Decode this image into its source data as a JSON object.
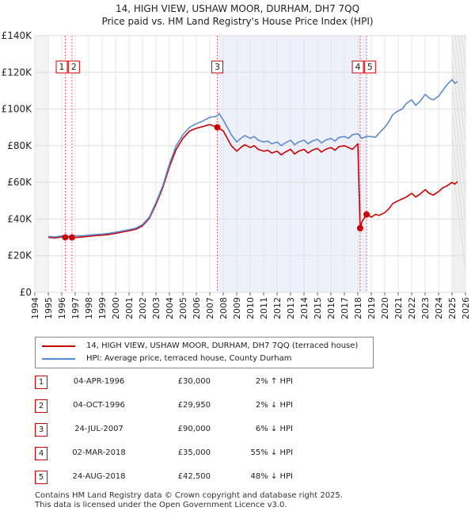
{
  "title": "14, HIGH VIEW, USHAW MOOR, DURHAM, DH7 7QQ",
  "subtitle": "Price paid vs. HM Land Registry's House Price Index (HPI)",
  "legend": [
    {
      "label": "14, HIGH VIEW, USHAW MOOR, DURHAM, DH7 7QQ (terraced house)",
      "color": "#cc0000"
    },
    {
      "label": "HPI: Average price, terraced house, County Durham",
      "color": "#5b8bd0"
    }
  ],
  "sales": [
    {
      "num": "1",
      "date": "04-APR-1996",
      "price": "£30,000",
      "hpi": "2% ↑ HPI"
    },
    {
      "num": "2",
      "date": "04-OCT-1996",
      "price": "£29,950",
      "hpi": "2% ↓ HPI"
    },
    {
      "num": "3",
      "date": "24-JUL-2007",
      "price": "£90,000",
      "hpi": "6% ↓ HPI"
    },
    {
      "num": "4",
      "date": "02-MAR-2018",
      "price": "£35,000",
      "hpi": "55% ↓ HPI"
    },
    {
      "num": "5",
      "date": "24-AUG-2018",
      "price": "£42,500",
      "hpi": "48% ↓ HPI"
    }
  ],
  "footer": {
    "line1": "Contains HM Land Registry data © Crown copyright and database right 2025.",
    "line2": "This data is licensed under the Open Government Licence v3.0."
  },
  "chart_data": {
    "type": "line",
    "title": "14, HIGH VIEW, USHAW MOOR, DURHAM, DH7 7QQ",
    "subtitle": "Price paid vs. HM Land Registry's House Price Index (HPI)",
    "xlabel": "",
    "ylabel": "",
    "xlim": [
      1994,
      2026
    ],
    "ylim": [
      0,
      140000
    ],
    "x_ticks": [
      1994,
      1995,
      1996,
      1997,
      1998,
      1999,
      2000,
      2001,
      2002,
      2003,
      2004,
      2005,
      2006,
      2007,
      2008,
      2009,
      2010,
      2011,
      2012,
      2013,
      2014,
      2015,
      2016,
      2017,
      2018,
      2019,
      2020,
      2021,
      2022,
      2023,
      2024,
      2025,
      2026
    ],
    "y_ticks": [
      0,
      20000,
      40000,
      60000,
      80000,
      100000,
      120000,
      140000
    ],
    "y_tick_labels": [
      "£0",
      "£20K",
      "£40K",
      "£60K",
      "£80K",
      "£100K",
      "£120K",
      "£140K"
    ],
    "grid": true,
    "legend_position": "below",
    "data_range_start": 1995,
    "forecast_start": 2025.0,
    "highlight_span": [
      2007.56,
      2018.65
    ],
    "series": [
      {
        "name": "HPI: Average price, terraced house, County Durham",
        "color": "#5b8bd0",
        "x": [
          1995.0,
          1995.5,
          1996.0,
          1996.5,
          1997.0,
          1997.5,
          1998.0,
          1998.5,
          1999.0,
          1999.5,
          2000.0,
          2000.5,
          2001.0,
          2001.5,
          2002.0,
          2002.5,
          2003.0,
          2003.5,
          2004.0,
          2004.5,
          2005.0,
          2005.5,
          2006.0,
          2006.5,
          2007.0,
          2007.5,
          2007.7,
          2008.0,
          2008.3,
          2008.6,
          2009.0,
          2009.3,
          2009.6,
          2010.0,
          2010.3,
          2010.6,
          2011.0,
          2011.3,
          2011.6,
          2012.0,
          2012.3,
          2012.6,
          2013.0,
          2013.3,
          2013.6,
          2014.0,
          2014.3,
          2014.6,
          2015.0,
          2015.3,
          2015.6,
          2016.0,
          2016.3,
          2016.6,
          2017.0,
          2017.3,
          2017.6,
          2018.0,
          2018.3,
          2018.6,
          2019.0,
          2019.3,
          2019.6,
          2020.0,
          2020.3,
          2020.6,
          2021.0,
          2021.3,
          2021.6,
          2022.0,
          2022.3,
          2022.6,
          2023.0,
          2023.3,
          2023.6,
          2024.0,
          2024.3,
          2024.6,
          2025.0,
          2025.2,
          2025.4
        ],
        "y": [
          30500,
          30200,
          30800,
          30600,
          30900,
          30800,
          31200,
          31500,
          31800,
          32200,
          32800,
          33500,
          34200,
          35000,
          37000,
          41000,
          49000,
          58000,
          70000,
          80000,
          86000,
          90000,
          92000,
          93500,
          95500,
          96000,
          97500,
          94000,
          90000,
          86000,
          82000,
          84000,
          85500,
          84000,
          85000,
          83000,
          82000,
          82500,
          81000,
          82000,
          80000,
          81500,
          83000,
          80500,
          82000,
          83000,
          81000,
          82500,
          83500,
          81500,
          83000,
          84000,
          82500,
          84500,
          85000,
          84000,
          86000,
          86500,
          84000,
          85000,
          85000,
          84500,
          87000,
          90000,
          93000,
          97000,
          99000,
          100000,
          103000,
          105000,
          102000,
          104000,
          108000,
          106000,
          105000,
          107000,
          110000,
          113000,
          116000,
          114000,
          115000
        ]
      },
      {
        "name": "14, HIGH VIEW, USHAW MOOR, DURHAM, DH7 7QQ (terraced house)",
        "color": "#cc0000",
        "x": [
          1995.0,
          1995.5,
          1996.0,
          1996.26,
          1996.5,
          1996.76,
          1997.0,
          1997.5,
          1998.0,
          1998.5,
          1999.0,
          1999.5,
          2000.0,
          2000.5,
          2001.0,
          2001.5,
          2002.0,
          2002.5,
          2003.0,
          2003.5,
          2004.0,
          2004.5,
          2005.0,
          2005.5,
          2006.0,
          2006.5,
          2007.0,
          2007.56,
          2008.0,
          2008.3,
          2008.6,
          2009.0,
          2009.3,
          2009.6,
          2010.0,
          2010.3,
          2010.6,
          2011.0,
          2011.3,
          2011.6,
          2012.0,
          2012.3,
          2012.6,
          2013.0,
          2013.3,
          2013.6,
          2014.0,
          2014.3,
          2014.6,
          2015.0,
          2015.3,
          2015.6,
          2016.0,
          2016.3,
          2016.6,
          2017.0,
          2017.3,
          2017.6,
          2018.0,
          2018.17,
          2018.3,
          2018.65,
          2019.0,
          2019.3,
          2019.6,
          2020.0,
          2020.3,
          2020.6,
          2021.0,
          2021.3,
          2021.6,
          2022.0,
          2022.3,
          2022.6,
          2023.0,
          2023.3,
          2023.6,
          2024.0,
          2024.3,
          2024.6,
          2025.0,
          2025.2,
          2025.4
        ],
        "y": [
          30000,
          29700,
          30300,
          30000,
          30100,
          29950,
          29900,
          30200,
          30600,
          30900,
          31200,
          31600,
          32200,
          32900,
          33600,
          34400,
          36300,
          40300,
          48000,
          57000,
          68500,
          78000,
          84000,
          88000,
          89500,
          90500,
          91500,
          90000,
          88000,
          84000,
          80000,
          77000,
          79000,
          80500,
          79000,
          80000,
          78000,
          77000,
          77500,
          76000,
          77000,
          75000,
          76500,
          78000,
          75500,
          77000,
          78000,
          76000,
          77500,
          78500,
          76500,
          78000,
          79000,
          77500,
          79500,
          80000,
          79000,
          78000,
          81000,
          35000,
          38500,
          42500,
          41000,
          42500,
          42000,
          43500,
          45500,
          48500,
          50000,
          51000,
          52000,
          54000,
          52000,
          53500,
          56000,
          54000,
          53000,
          55000,
          57000,
          58000,
          60000,
          59000,
          60500
        ]
      }
    ],
    "transactions": [
      {
        "label": "1",
        "x": 1996.26,
        "y": 30000
      },
      {
        "label": "2",
        "x": 1996.76,
        "y": 29950
      },
      {
        "label": "3",
        "x": 2007.56,
        "y": 90000
      },
      {
        "label": "4",
        "x": 2018.17,
        "y": 35000
      },
      {
        "label": "5",
        "x": 2018.65,
        "y": 42500
      }
    ]
  }
}
